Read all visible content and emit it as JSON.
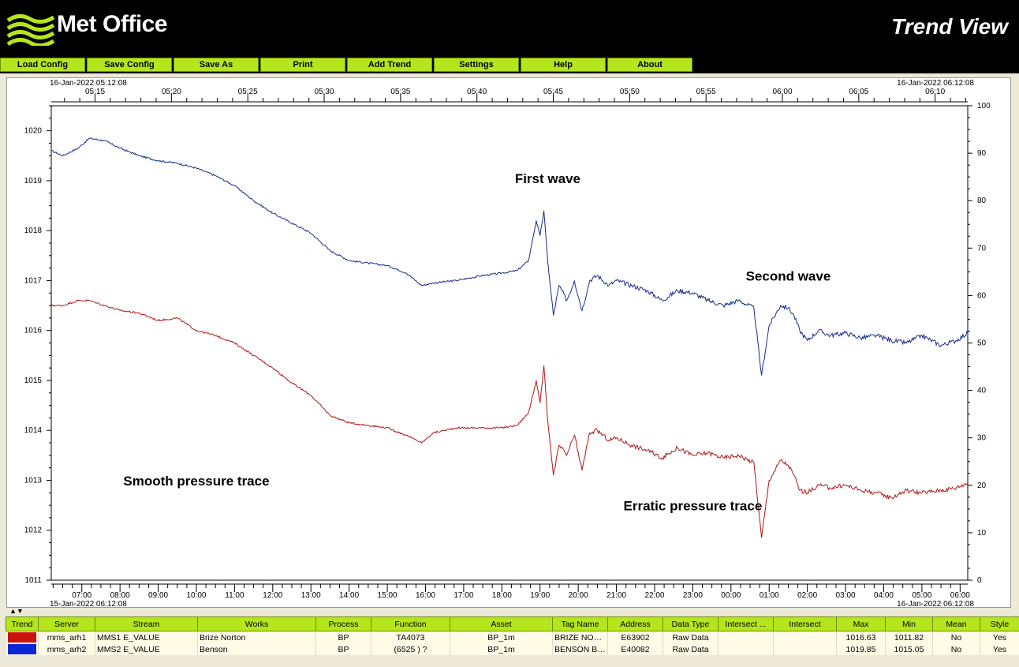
{
  "header": {
    "logo_text": "Met Office",
    "app_title": "Trend View"
  },
  "menu": [
    "Load Config",
    "Save Config",
    "Save As",
    "Print",
    "Add Trend",
    "Settings",
    "Help",
    "About"
  ],
  "colors": {
    "menu_green": "#b5e61d",
    "series_blue": "#1a2a8c",
    "series_red": "#b01818"
  },
  "chart_data": {
    "type": "line",
    "top_axis": {
      "start_label": "16-Jan-2022 05:12:08",
      "end_label": "16-Jan-2022 06:12:08",
      "ticks": [
        "05:15",
        "05:20",
        "05:25",
        "05:30",
        "05:35",
        "05:40",
        "05:45",
        "05:50",
        "05:55",
        "06:00",
        "06:05",
        "06:10"
      ]
    },
    "bottom_axis": {
      "start_label": "15-Jan-2022 06:12:08",
      "end_label": "16-Jan-2022 06:12:08",
      "ticks": [
        "07:00",
        "08:00",
        "09:00",
        "10:00",
        "11:00",
        "12:00",
        "13:00",
        "14:00",
        "15:00",
        "16:00",
        "17:00",
        "18:00",
        "19:00",
        "20:00",
        "21:00",
        "22:00",
        "23:00",
        "00:00",
        "01:00",
        "02:00",
        "03:00",
        "04:00",
        "05:00",
        "06:00"
      ]
    },
    "left_axis": {
      "ylim": [
        1011,
        1020.5
      ],
      "ticks": [
        1011,
        1012,
        1013,
        1014,
        1015,
        1016,
        1017,
        1018,
        1019,
        1020
      ]
    },
    "right_axis": {
      "ylim": [
        0,
        100
      ],
      "ticks": [
        0,
        10,
        20,
        30,
        40,
        50,
        60,
        70,
        80,
        90,
        100
      ]
    },
    "series": [
      {
        "color": "#1a2a8c",
        "x": [
          6.2,
          6.5,
          6.9,
          7.2,
          7.6,
          8.0,
          8.5,
          9.0,
          9.5,
          10.0,
          10.5,
          11.0,
          11.5,
          12.0,
          12.5,
          13.0,
          13.5,
          14.0,
          14.5,
          15.0,
          15.5,
          15.9,
          16.2,
          16.8,
          17.5,
          18.0,
          18.4,
          18.7,
          18.9,
          19.0,
          19.1,
          19.2,
          19.35,
          19.5,
          19.7,
          19.9,
          20.1,
          20.3,
          20.5,
          20.8,
          21.0,
          21.4,
          21.8,
          22.2,
          22.6,
          23.0,
          23.4,
          23.8,
          24.2,
          24.6,
          24.8,
          25.0,
          25.3,
          25.5,
          25.65,
          25.8,
          26.0,
          26.3,
          26.6,
          27.0,
          27.4,
          27.8,
          28.2,
          28.6,
          29.0,
          29.5,
          29.9,
          30.2
        ],
        "values": [
          1019.6,
          1019.5,
          1019.65,
          1019.85,
          1019.8,
          1019.65,
          1019.5,
          1019.4,
          1019.35,
          1019.25,
          1019.1,
          1018.9,
          1018.6,
          1018.35,
          1018.15,
          1017.95,
          1017.6,
          1017.4,
          1017.35,
          1017.3,
          1017.15,
          1016.9,
          1016.95,
          1017.0,
          1017.1,
          1017.15,
          1017.2,
          1017.4,
          1018.2,
          1017.9,
          1018.4,
          1017.4,
          1016.3,
          1016.9,
          1016.6,
          1017.0,
          1016.4,
          1017.0,
          1017.1,
          1016.9,
          1017.0,
          1016.9,
          1016.8,
          1016.6,
          1016.8,
          1016.75,
          1016.6,
          1016.5,
          1016.6,
          1016.45,
          1015.1,
          1016.1,
          1016.5,
          1016.45,
          1016.3,
          1016.0,
          1015.8,
          1016.0,
          1015.9,
          1015.95,
          1015.85,
          1015.9,
          1015.8,
          1015.75,
          1015.9,
          1015.7,
          1015.8,
          1015.95
        ]
      },
      {
        "color": "#b01818",
        "x": [
          6.2,
          6.5,
          6.9,
          7.2,
          7.6,
          8.0,
          8.5,
          9.0,
          9.5,
          10.0,
          10.5,
          11.0,
          11.5,
          12.0,
          12.5,
          13.0,
          13.5,
          14.0,
          14.5,
          15.0,
          15.5,
          15.9,
          16.2,
          16.8,
          17.5,
          18.0,
          18.4,
          18.7,
          18.9,
          19.0,
          19.1,
          19.2,
          19.35,
          19.5,
          19.7,
          19.9,
          20.1,
          20.3,
          20.5,
          20.8,
          21.0,
          21.4,
          21.8,
          22.2,
          22.6,
          23.0,
          23.4,
          23.8,
          24.2,
          24.6,
          24.8,
          25.0,
          25.3,
          25.5,
          25.65,
          25.8,
          26.0,
          26.3,
          26.6,
          27.0,
          27.4,
          27.8,
          28.2,
          28.6,
          29.0,
          29.5,
          29.9,
          30.2
        ],
        "values": [
          1016.5,
          1016.5,
          1016.6,
          1016.6,
          1016.5,
          1016.4,
          1016.35,
          1016.2,
          1016.25,
          1016.0,
          1015.9,
          1015.75,
          1015.5,
          1015.25,
          1014.95,
          1014.7,
          1014.3,
          1014.15,
          1014.1,
          1014.05,
          1013.9,
          1013.75,
          1013.95,
          1014.05,
          1014.05,
          1014.05,
          1014.1,
          1014.35,
          1015.0,
          1014.55,
          1015.3,
          1014.2,
          1013.1,
          1013.7,
          1013.5,
          1013.9,
          1013.2,
          1013.95,
          1014.0,
          1013.8,
          1013.85,
          1013.7,
          1013.6,
          1013.45,
          1013.65,
          1013.5,
          1013.55,
          1013.45,
          1013.5,
          1013.35,
          1011.85,
          1013.0,
          1013.4,
          1013.3,
          1013.1,
          1012.8,
          1012.75,
          1012.9,
          1012.85,
          1012.9,
          1012.8,
          1012.75,
          1012.65,
          1012.8,
          1012.75,
          1012.8,
          1012.85,
          1012.95
        ]
      }
    ],
    "annotations": [
      {
        "text": "First wave",
        "x": 19.2,
        "y": 1018.95
      },
      {
        "text": "Second wave",
        "x": 25.5,
        "y": 1017.0
      },
      {
        "text": "Smooth pressure trace",
        "x": 10.0,
        "y": 1012.9
      },
      {
        "text": "Erratic pressure trace",
        "x": 23.0,
        "y": 1012.4
      }
    ]
  },
  "table": {
    "headers": [
      "Trend",
      "Server",
      "Stream",
      "Works",
      "Process",
      "Function",
      "Asset",
      "Tag Name",
      "Address",
      "Data Type",
      "Intersect ...",
      "Intersect",
      "Max",
      "Min",
      "Mean",
      "Style"
    ],
    "rows": [
      {
        "color": "#c8140c",
        "cells": [
          "",
          "mms_arh1",
          "MMS1 E_VALUE",
          "Brize Norton",
          "BP",
          "TA4073",
          "BP_1m",
          "BRIZE NOR...",
          "E63902",
          "Raw Data",
          "",
          "",
          "1016.63",
          "1011.82",
          "No",
          "Yes"
        ]
      },
      {
        "color": "#0a28d2",
        "cells": [
          "",
          "mms_arh2",
          "MMS2 E_VALUE",
          "Benson",
          "BP",
          "(6525 ) ?",
          "BP_1m",
          "BENSON BP...",
          "E40082",
          "Raw Data",
          "",
          "",
          "1019.85",
          "1015.05",
          "No",
          "Yes"
        ]
      }
    ]
  }
}
